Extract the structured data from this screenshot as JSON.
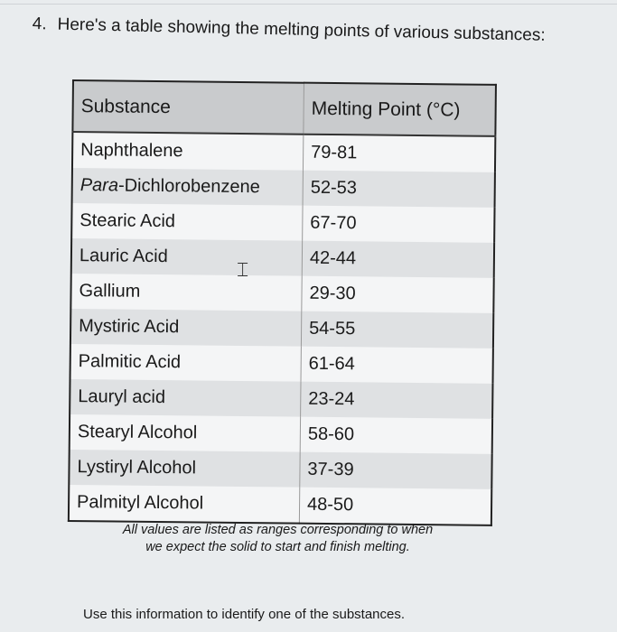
{
  "question": {
    "number": "4.",
    "text": "Here's a table showing the melting points of various substances:"
  },
  "table": {
    "headers": [
      "Substance",
      "Melting Point (°C)"
    ],
    "rows": [
      {
        "prefix": "",
        "substance": "Naphthalene",
        "melting_point": "79-81"
      },
      {
        "prefix": "Para",
        "substance": "-Dichlorobenzene",
        "melting_point": "52-53"
      },
      {
        "prefix": "",
        "substance": "Stearic Acid",
        "melting_point": "67-70"
      },
      {
        "prefix": "",
        "substance": "Lauric Acid",
        "melting_point": "42-44"
      },
      {
        "prefix": "",
        "substance": "Gallium",
        "melting_point": "29-30"
      },
      {
        "prefix": "",
        "substance": "Mystiric Acid",
        "melting_point": "54-55"
      },
      {
        "prefix": "",
        "substance": "Palmitic Acid",
        "melting_point": "61-64"
      },
      {
        "prefix": "",
        "substance": "Lauryl acid",
        "melting_point": "23-24"
      },
      {
        "prefix": "",
        "substance": "Stearyl Alcohol",
        "melting_point": "58-60"
      },
      {
        "prefix": "",
        "substance": "Lystiryl Alcohol",
        "melting_point": "37-39"
      },
      {
        "prefix": "",
        "substance": "Palmityl Alcohol",
        "melting_point": "48-50"
      }
    ]
  },
  "note": "All values are listed as ranges corresponding to when we expect the solid to start and finish melting.",
  "footer": "Use this information to identify one of the substances.",
  "cursor_icon": "text-cursor-icon"
}
